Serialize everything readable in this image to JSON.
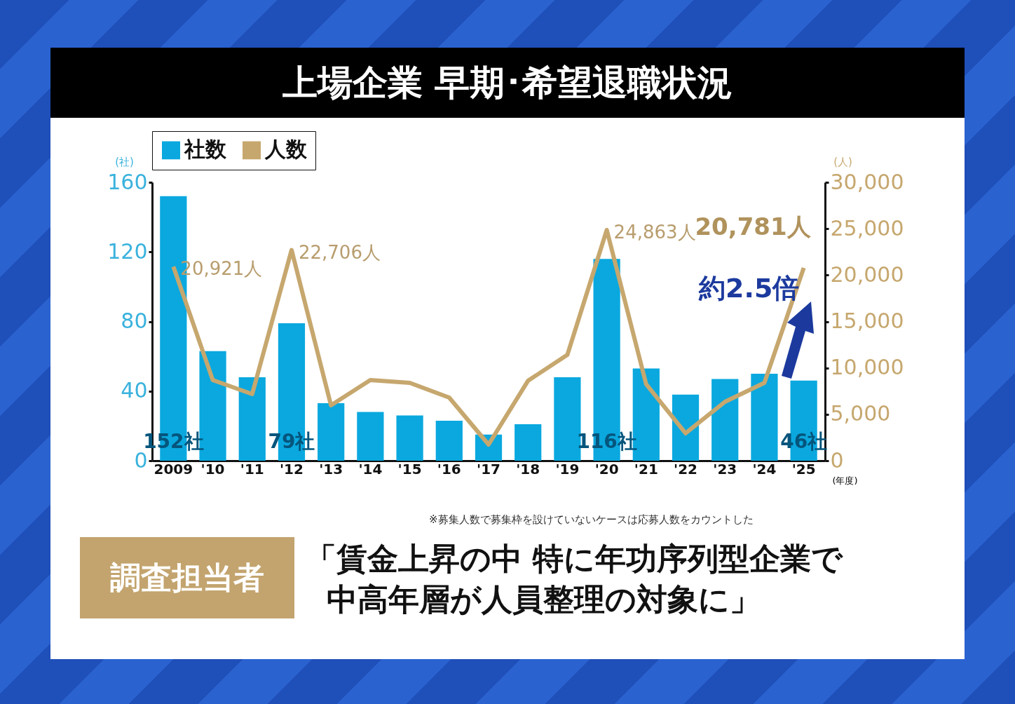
{
  "chart_data": {
    "type": "bar",
    "title": "上場企業 早期･希望退職状況",
    "categories": [
      "2009",
      "'10",
      "'11",
      "'12",
      "'13",
      "'14",
      "'15",
      "'16",
      "'17",
      "'18",
      "'19",
      "'20",
      "'21",
      "'22",
      "'23",
      "'24",
      "'25"
    ],
    "series": [
      {
        "name": "社数",
        "color": "#0aa8df",
        "values": [
          152,
          63,
          48,
          79,
          33,
          28,
          26,
          23,
          15,
          21,
          48,
          116,
          53,
          38,
          47,
          50,
          46
        ],
        "value_labels": [
          "152社",
          null,
          null,
          "79社",
          null,
          null,
          null,
          null,
          null,
          null,
          null,
          "116社",
          null,
          null,
          null,
          null,
          "46社"
        ]
      },
      {
        "name": "人数",
        "type": "line",
        "axis": "y2",
        "color": "#c6a76e",
        "values": [
          20921,
          8690,
          7180,
          22706,
          5970,
          8690,
          8390,
          6800,
          1740,
          8610,
          11410,
          24863,
          8240,
          2950,
          6350,
          8390,
          20781
        ],
        "value_labels": [
          "20,921人",
          null,
          null,
          "22,706人",
          null,
          null,
          null,
          null,
          null,
          null,
          null,
          "24,863人",
          null,
          null,
          null,
          null,
          "20,781人"
        ]
      }
    ],
    "ylabel": "(社)",
    "y2label": "(人)",
    "xlabel": "(年度)",
    "ylim": [
      0,
      160
    ],
    "yticks": [
      0,
      40,
      80,
      120,
      160
    ],
    "y2lim": [
      0,
      30000
    ],
    "y2ticks": [
      0,
      {
        "value": 5000,
        "label": "5,000"
      },
      {
        "value": 10000,
        "label": "10,000"
      },
      {
        "value": 15000,
        "label": "15,000"
      },
      {
        "value": 20000,
        "label": "20,000"
      },
      {
        "value": 25000,
        "label": "25,000"
      },
      {
        "value": 30000,
        "label": "30,000"
      }
    ],
    "legend": "top",
    "annotations": [
      "約2.5倍",
      "※募集人数で募集枠を設けていないケースは応募人数をカウントした",
      "調査担当者",
      "「賃金上昇の中 特に年功序列型企業で",
      "中高年層が人員整理の対象に」"
    ]
  }
}
